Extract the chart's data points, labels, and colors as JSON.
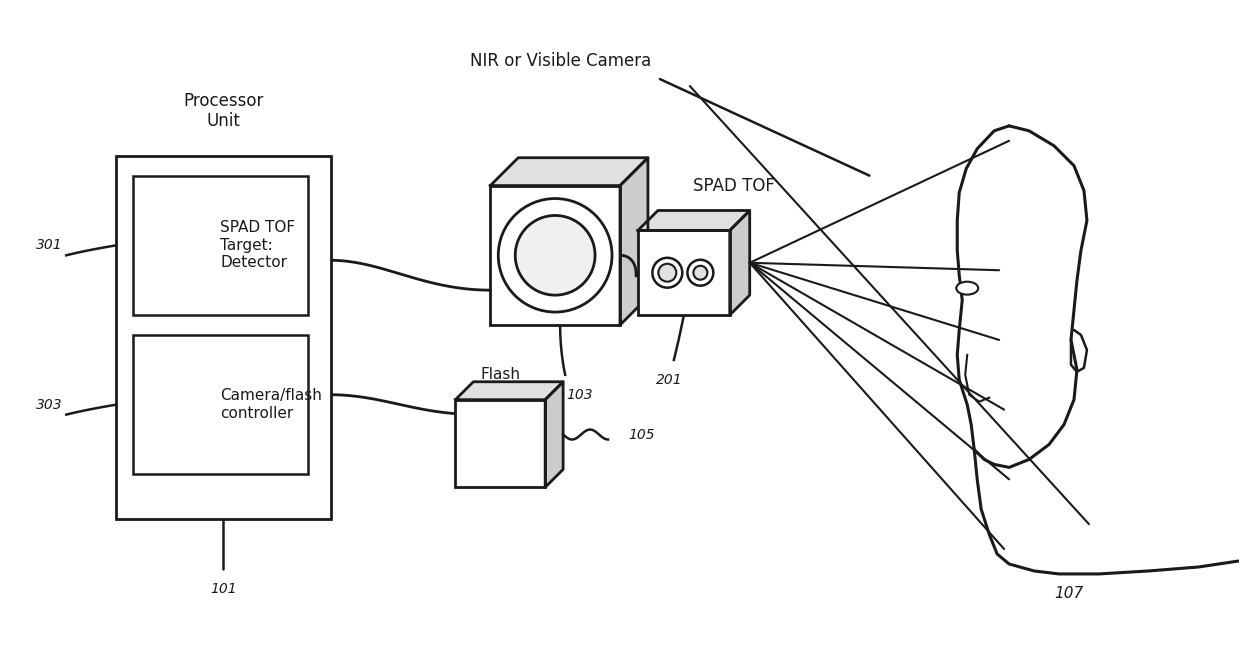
{
  "bg_color": "#ffffff",
  "line_color": "#1a1a1a",
  "figsize": [
    12.4,
    6.53
  ],
  "dpi": 100,
  "labels": {
    "processor_unit": "Processor\nUnit",
    "spad_tof_box": "SPAD TOF\nTarget:\nDetector",
    "camera_flash": "Camera/flash\ncontroller",
    "nir_camera": "NIR or Visible Camera",
    "spad_tof_label": "SPAD TOF",
    "flash_label": "Flash",
    "ref_101": "101",
    "ref_103": "103",
    "ref_105": "105",
    "ref_107": "107",
    "ref_201": "201",
    "ref_301": "301",
    "ref_303": "303"
  }
}
